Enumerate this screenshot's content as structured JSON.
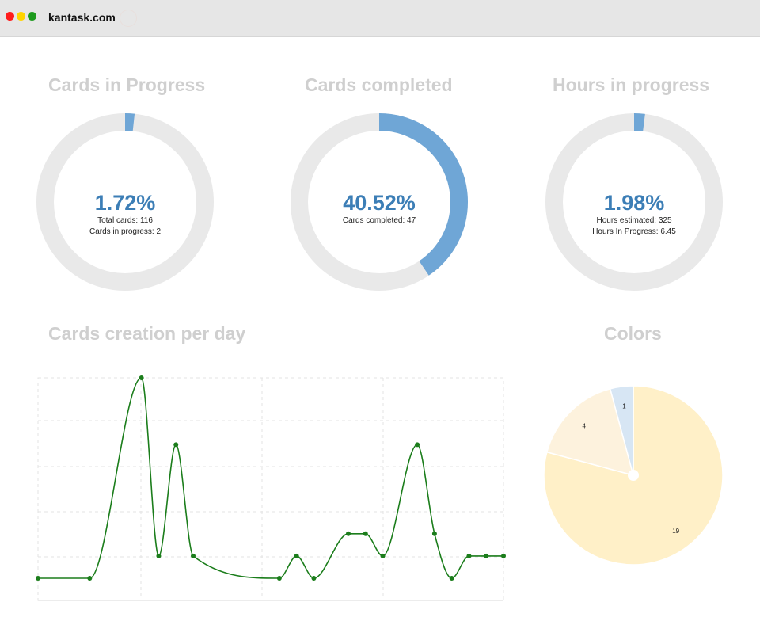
{
  "browser": {
    "site": "kantask.com",
    "controls": {
      "close": "#ff1c1c",
      "minimize": "#ffd400",
      "maximize": "#1d9a1d"
    }
  },
  "stats": [
    {
      "title": "Cards in Progress",
      "percent_label": "1.72%",
      "percent": 1.72,
      "lines": [
        "Total cards: 116",
        "Cards in progress: 2"
      ]
    },
    {
      "title": "Cards completed",
      "percent_label": "40.52%",
      "percent": 40.52,
      "lines": [
        "Cards completed: 47"
      ]
    },
    {
      "title": "Hours in progress",
      "percent_label": "1.98%",
      "percent": 1.98,
      "lines": [
        "Hours estimated: 325",
        "Hours In Progress: 6.45"
      ]
    }
  ],
  "colors": {
    "track": "#e9e9e9",
    "fill": "#6fa6d6",
    "line": "#1b7d1b"
  },
  "line_chart": {
    "title": "Cards creation per day"
  },
  "pie_chart": {
    "title": "Colors"
  },
  "chart_data": [
    {
      "type": "line",
      "title": "Cards creation per day",
      "xlabel": "",
      "ylabel": "",
      "grid": true,
      "legend": "none",
      "x": [
        0,
        3,
        6,
        7,
        8,
        9,
        14,
        15,
        16,
        18,
        19,
        20,
        22,
        23,
        24,
        25,
        26,
        27
      ],
      "y": [
        0,
        0,
        9,
        1,
        6,
        1,
        0,
        1,
        0,
        2,
        2,
        1,
        6,
        2,
        0,
        1,
        1,
        1
      ],
      "ylim": [
        0,
        9
      ]
    },
    {
      "type": "pie",
      "title": "Colors",
      "labels": [
        "19",
        "4",
        "1"
      ],
      "values": [
        19,
        4,
        1
      ],
      "colors": [
        "#fff0c8",
        "#fdf2dd",
        "#d7e6f4"
      ]
    }
  ]
}
